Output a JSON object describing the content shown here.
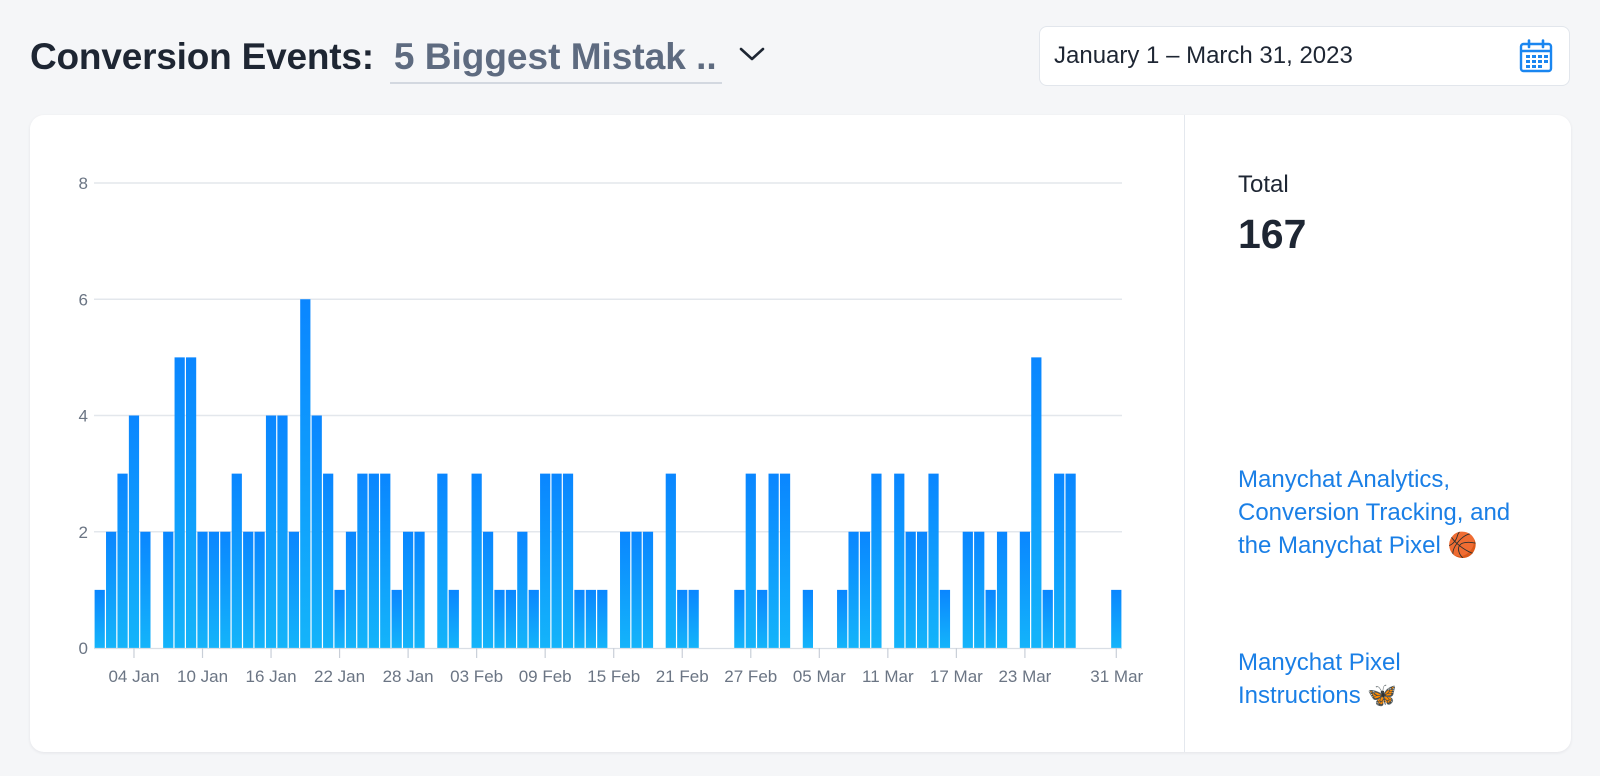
{
  "header": {
    "title": "Conversion Events:",
    "event_selected": "5 Biggest Mistak .."
  },
  "date_range": "January 1 – March 31, 2023",
  "side": {
    "total_label": "Total",
    "total_value": "167",
    "link1": "Manychat Analytics, Conversion Tracking, and the Manychat Pixel 🏀",
    "link2": "Manychat Pixel Instructions 🦋"
  },
  "colors": {
    "bar_top": "#0a86ff",
    "bar_bottom": "#14b4fa",
    "link": "#1a7fe6"
  },
  "chart_data": {
    "type": "bar",
    "x_start": "2023-01-01",
    "x_end": "2023-03-31",
    "x_tick_labels": [
      "04 Jan",
      "10 Jan",
      "16 Jan",
      "22 Jan",
      "28 Jan",
      "03 Feb",
      "09 Feb",
      "15 Feb",
      "21 Feb",
      "27 Feb",
      "05 Mar",
      "11 Mar",
      "17 Mar",
      "23 Mar",
      "31 Mar"
    ],
    "y_ticks": [
      0,
      2,
      4,
      6,
      8
    ],
    "ylim": [
      0,
      8
    ],
    "grid": true,
    "values": [
      1,
      2,
      3,
      4,
      2,
      0,
      2,
      5,
      5,
      2,
      2,
      2,
      3,
      2,
      2,
      4,
      4,
      2,
      6,
      4,
      3,
      1,
      2,
      3,
      3,
      3,
      1,
      2,
      2,
      0,
      3,
      1,
      0,
      3,
      2,
      1,
      1,
      2,
      1,
      3,
      3,
      3,
      1,
      1,
      1,
      0,
      2,
      2,
      2,
      0,
      3,
      1,
      1,
      0,
      0,
      0,
      1,
      3,
      1,
      3,
      3,
      0,
      1,
      0,
      0,
      1,
      2,
      2,
      3,
      0,
      3,
      2,
      2,
      3,
      1,
      0,
      2,
      2,
      1,
      2,
      0,
      2,
      5,
      1,
      3,
      3,
      0,
      0,
      0,
      1
    ]
  }
}
